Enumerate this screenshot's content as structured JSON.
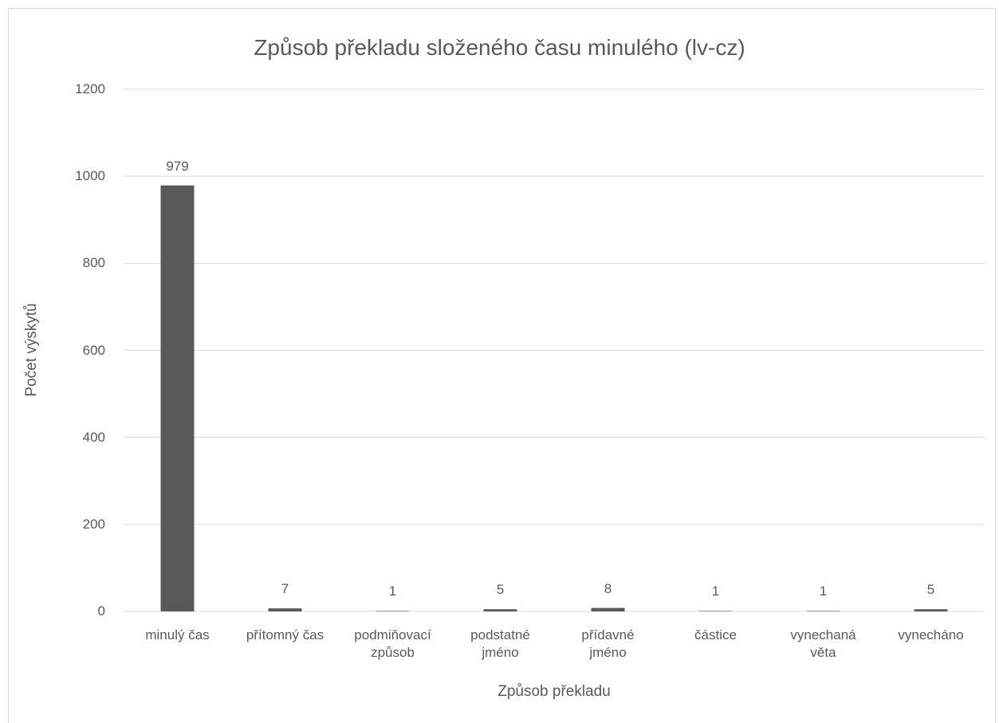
{
  "chart_data": {
    "type": "bar",
    "title": "Způsob překladu složeného času minulého (lv-cz)",
    "x_label": "Způsob překladu",
    "y_label": "Počet výskytů",
    "categories": [
      "minulý čas",
      "přítomný čas",
      "podmiňovací\nzpůsob",
      "podstatné\njméno",
      "přídavné\njméno",
      "částice",
      "vynechaná\nvěta",
      "vynecháno"
    ],
    "values": [
      979,
      7,
      1,
      5,
      8,
      1,
      1,
      5
    ],
    "color": "#595959",
    "ylim": [
      0,
      1200
    ],
    "yticks": [
      0,
      200,
      400,
      600,
      800,
      1000,
      1200
    ],
    "grid": true
  }
}
